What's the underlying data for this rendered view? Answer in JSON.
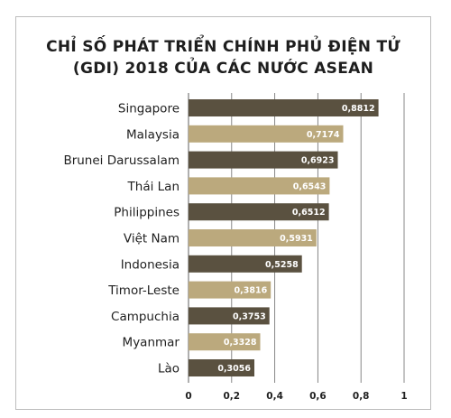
{
  "chart_data": {
    "type": "bar",
    "orientation": "horizontal",
    "title_lines": [
      "CHỈ SỐ PHÁT TRIỂN CHÍNH PHỦ ĐIỆN TỬ",
      "(GDI) 2018 CỦA CÁC NƯỚC ASEAN"
    ],
    "categories": [
      "Singapore",
      "Malaysia",
      "Brunei Darussalam",
      "Thái Lan",
      "Philippines",
      "Việt Nam",
      "Indonesia",
      "Timor-Leste",
      "Campuchia",
      "Myanmar",
      "Lào"
    ],
    "values": [
      0.8812,
      0.7174,
      0.6923,
      0.6543,
      0.6512,
      0.5931,
      0.5258,
      0.3816,
      0.3753,
      0.3328,
      0.3056
    ],
    "value_labels": [
      "0,8812",
      "0,7174",
      "0,6923",
      "0,6543",
      "0,6512",
      "0,5931",
      "0,5258",
      "0,3816",
      "0,3753",
      "0,3328",
      "0,3056"
    ],
    "xlim": [
      0,
      1
    ],
    "xticks": [
      0,
      0.2,
      0.4,
      0.6,
      0.8,
      1
    ],
    "xtick_labels": [
      "0",
      "0,2",
      "0,4",
      "0,6",
      "0,8",
      "1"
    ],
    "bar_colors": [
      "#5a5140",
      "#bba97d",
      "#5a5140",
      "#bba97d",
      "#5a5140",
      "#bba97d",
      "#5a5140",
      "#bba97d",
      "#5a5140",
      "#bba97d",
      "#5a5140"
    ],
    "grid": true,
    "grid_color": "#7a7a7a"
  }
}
